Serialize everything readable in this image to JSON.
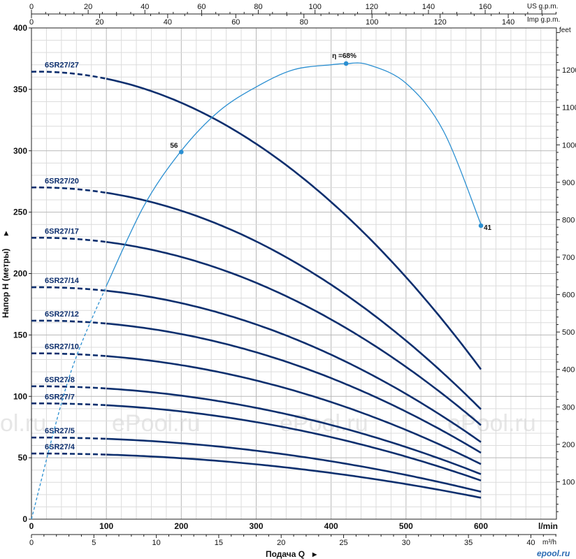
{
  "chart_data": {
    "type": "line",
    "xlabel": "Подача Q",
    "ylabel": "Напор H (метры)",
    "x_unit": "l/min",
    "x_unit_m3h": "m³/h",
    "y_right_unit": "feet",
    "top_axis_us_label": "US g.p.m.",
    "top_axis_imp_label": "Imp g.p.m.",
    "xlim": [
      0,
      700
    ],
    "ylim": [
      0,
      400
    ],
    "grid": true,
    "x_ticks_lmin": [
      "0",
      "100",
      "200",
      "300",
      "400",
      "500",
      "600"
    ],
    "x_ticks_m3h": [
      "0",
      "5",
      "10",
      "15",
      "20",
      "25",
      "30",
      "35",
      "40"
    ],
    "y_ticks_m": [
      "0",
      "50",
      "100",
      "150",
      "200",
      "250",
      "300",
      "350",
      "400"
    ],
    "y_ticks_feet": [
      "100",
      "200",
      "300",
      "400",
      "500",
      "600",
      "700",
      "800",
      "900",
      "1000",
      "1100",
      "1200",
      "feet"
    ],
    "top_ticks_us": [
      "0",
      "20",
      "40",
      "60",
      "80",
      "100",
      "120",
      "140",
      "160"
    ],
    "top_ticks_imp": [
      "0",
      "20",
      "40",
      "60",
      "80",
      "100",
      "120",
      "140"
    ],
    "series": [
      {
        "name": "6SR27/27",
        "x": [
          0,
          100,
          200,
          300,
          400,
          500,
          600
        ],
        "y": [
          367,
          356,
          336,
          306,
          262,
          198,
          120
        ]
      },
      {
        "name": "6SR27/20",
        "x": [
          0,
          100,
          200,
          300,
          400,
          500,
          600
        ],
        "y": [
          272,
          264,
          249,
          226,
          194,
          146,
          88
        ]
      },
      {
        "name": "6SR27/17",
        "x": [
          0,
          100,
          200,
          300,
          400,
          500,
          600
        ],
        "y": [
          231,
          224,
          211,
          193,
          165,
          125,
          75
        ]
      },
      {
        "name": "6SR27/14",
        "x": [
          0,
          100,
          200,
          300,
          400,
          500,
          600
        ],
        "y": [
          190,
          185,
          174,
          159,
          136,
          102,
          62
        ]
      },
      {
        "name": "6SR27/12",
        "x": [
          0,
          100,
          200,
          300,
          400,
          500,
          600
        ],
        "y": [
          163,
          158,
          149,
          136,
          117,
          88,
          53
        ]
      },
      {
        "name": "6SR27/10",
        "x": [
          0,
          100,
          200,
          300,
          400,
          500,
          600
        ],
        "y": [
          136,
          132,
          124,
          113,
          97,
          73,
          44
        ]
      },
      {
        "name": "6SR27/8",
        "x": [
          0,
          100,
          200,
          300,
          400,
          500,
          600
        ],
        "y": [
          109,
          106,
          99,
          91,
          78,
          59,
          36
        ]
      },
      {
        "name": "6SR27/7",
        "x": [
          0,
          100,
          200,
          300,
          400,
          500,
          600
        ],
        "y": [
          95,
          92,
          87,
          79,
          68,
          51,
          31
        ]
      },
      {
        "name": "6SR27/5",
        "x": [
          0,
          100,
          200,
          300,
          400,
          500,
          600
        ],
        "y": [
          67,
          65,
          61,
          56,
          48,
          36,
          22
        ]
      },
      {
        "name": "6SR27/4",
        "x": [
          0,
          100,
          200,
          300,
          400,
          500,
          600
        ],
        "y": [
          54,
          52,
          49,
          45,
          38,
          29,
          17
        ]
      }
    ],
    "efficiency_curve": {
      "x": [
        0,
        50,
        100,
        150,
        200,
        250,
        300,
        350,
        400,
        420,
        450,
        500,
        550,
        600
      ],
      "y": [
        0,
        115,
        190,
        255,
        300,
        332,
        352,
        366,
        370,
        371,
        370,
        355,
        316,
        240
      ],
      "points": [
        {
          "label": "56",
          "x": 200,
          "y": 299
        },
        {
          "label": "η =68%",
          "x": 420,
          "y": 371
        },
        {
          "label": "41",
          "x": 600,
          "y": 239
        }
      ]
    },
    "watermark_text": [
      "ol.ru",
      "ePool.ru",
      "ePool.ru",
      "ePool.ru"
    ],
    "logo_text": "epool.ru"
  }
}
